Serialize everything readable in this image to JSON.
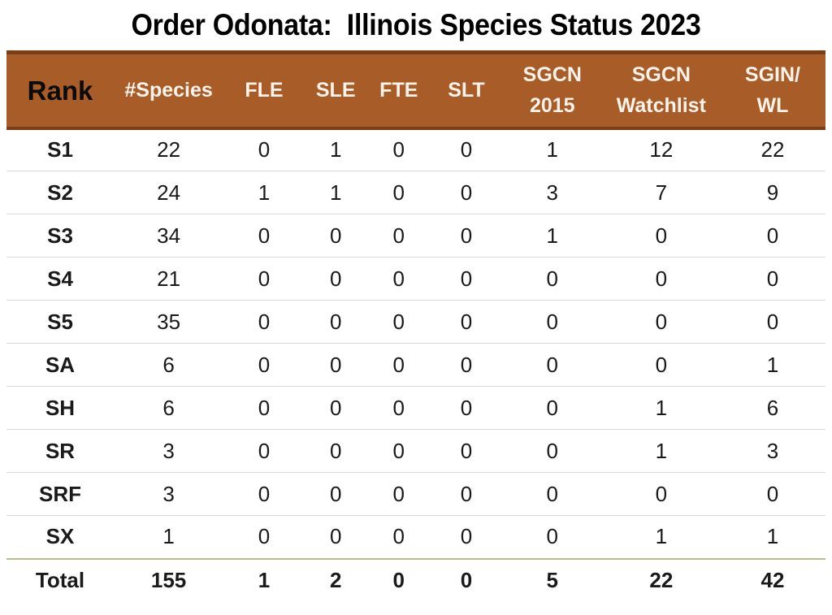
{
  "title": "Order Odonata:  Illinois Species Status 2023",
  "colors": {
    "header_bg": "#A85C27",
    "header_border": "#7C3E14",
    "header_text": "#FBF3EA",
    "rank_header_text": "#0B0B0B",
    "row_divider": "#DADADA",
    "total_divider": "#BEB88E",
    "page_bg": "#FFFFFF"
  },
  "chart_data": {
    "type": "table",
    "title": "Order Odonata:  Illinois Species Status 2023",
    "columns": [
      "Rank",
      "#Species",
      "FLE",
      "SLE",
      "FTE",
      "SLT",
      "SGCN\n2015",
      "SGCN\nWatchlist",
      "SGIN/\nWL"
    ],
    "rows": [
      {
        "rank": "S1",
        "values": [
          22,
          0,
          1,
          0,
          0,
          1,
          12,
          22
        ],
        "is_total": false
      },
      {
        "rank": "S2",
        "values": [
          24,
          1,
          1,
          0,
          0,
          3,
          7,
          9
        ],
        "is_total": false
      },
      {
        "rank": "S3",
        "values": [
          34,
          0,
          0,
          0,
          0,
          1,
          0,
          0
        ],
        "is_total": false
      },
      {
        "rank": "S4",
        "values": [
          21,
          0,
          0,
          0,
          0,
          0,
          0,
          0
        ],
        "is_total": false
      },
      {
        "rank": "S5",
        "values": [
          35,
          0,
          0,
          0,
          0,
          0,
          0,
          0
        ],
        "is_total": false
      },
      {
        "rank": "SA",
        "values": [
          6,
          0,
          0,
          0,
          0,
          0,
          0,
          1
        ],
        "is_total": false
      },
      {
        "rank": "SH",
        "values": [
          6,
          0,
          0,
          0,
          0,
          0,
          1,
          6
        ],
        "is_total": false
      },
      {
        "rank": "SR",
        "values": [
          3,
          0,
          0,
          0,
          0,
          0,
          1,
          3
        ],
        "is_total": false
      },
      {
        "rank": "SRF",
        "values": [
          3,
          0,
          0,
          0,
          0,
          0,
          0,
          0
        ],
        "is_total": false
      },
      {
        "rank": "SX",
        "values": [
          1,
          0,
          0,
          0,
          0,
          0,
          1,
          1
        ],
        "is_total": false
      },
      {
        "rank": "Total",
        "values": [
          155,
          1,
          2,
          0,
          0,
          5,
          22,
          42
        ],
        "is_total": true
      }
    ]
  }
}
